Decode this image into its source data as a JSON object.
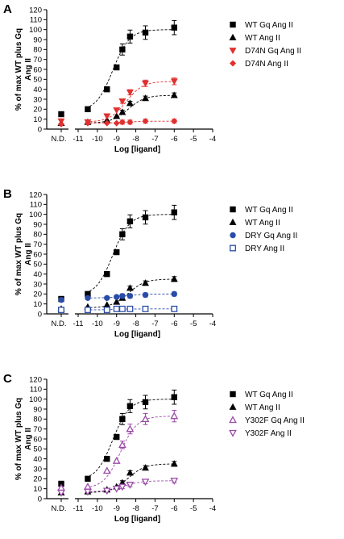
{
  "chart_data": [
    {
      "type": "scatter",
      "panel": "A",
      "xlabel": "Log [ligand]",
      "ylabel": "% of max WT plus Gq Ang II",
      "xlim": [
        -11,
        -4
      ],
      "ylim": [
        0,
        120
      ],
      "x_ticks": [
        "-11",
        "-10",
        "-9",
        "-8",
        "-7",
        "-6",
        "-5",
        "-4"
      ],
      "x_extra_tick": "N.D.",
      "y_ticks": [
        0,
        10,
        20,
        30,
        40,
        50,
        60,
        70,
        80,
        90,
        100,
        110,
        120
      ],
      "legend_position": "right",
      "series": [
        {
          "name": "WT Gq Ang II",
          "marker": "square",
          "color": "#000000",
          "nd": 15,
          "x": [
            -10.5,
            -9.5,
            -9,
            -8.7,
            -8.3,
            -7.5,
            -6
          ],
          "y": [
            20,
            40,
            62,
            80,
            93,
            97,
            102
          ],
          "fit": {
            "bottom": 18,
            "top": 100,
            "logec50": -9.2,
            "hill": 1
          }
        },
        {
          "name": "WT Ang II",
          "marker": "triangle-up",
          "color": "#000000",
          "nd": 6,
          "x": [
            -10.5,
            -9.5,
            -9,
            -8.7,
            -8.3,
            -7.5,
            -6
          ],
          "y": [
            7,
            9,
            13,
            17,
            26,
            31,
            34
          ],
          "fit": {
            "bottom": 6,
            "top": 34,
            "logec50": -8.4,
            "hill": 1
          }
        },
        {
          "name": "D74N Gq Ang II",
          "marker": "triangle-down",
          "color": "#e03030",
          "nd": 8,
          "x": [
            -10.5,
            -9.5,
            -9,
            -8.7,
            -8.3,
            -7.5,
            -6
          ],
          "y": [
            7,
            13,
            19,
            28,
            37,
            46,
            48
          ],
          "fit": {
            "bottom": 7,
            "top": 48,
            "logec50": -8.5,
            "hill": 1
          }
        },
        {
          "name": "D74N Ang II",
          "marker": "diamond",
          "color": "#e03030",
          "nd": 5,
          "x": [
            -10.5,
            -9.5,
            -9,
            -8.7,
            -8.3,
            -7.5,
            -6
          ],
          "y": [
            6,
            6,
            6,
            7,
            7,
            8,
            8
          ],
          "fit": {
            "bottom": 6,
            "top": 8,
            "logec50": -8.5,
            "hill": 1
          }
        }
      ]
    },
    {
      "type": "scatter",
      "panel": "B",
      "xlabel": "Log [ligand]",
      "ylabel": "% of max WT plus Gq Ang II",
      "xlim": [
        -11,
        -4
      ],
      "ylim": [
        0,
        120
      ],
      "x_ticks": [
        "-11",
        "-10",
        "-9",
        "-8",
        "-7",
        "-6",
        "-5",
        "-4"
      ],
      "x_extra_tick": "N.D.",
      "y_ticks": [
        0,
        10,
        20,
        30,
        40,
        50,
        60,
        70,
        80,
        90,
        100,
        110,
        120
      ],
      "legend_position": "right",
      "series": [
        {
          "name": "WT Gq Ang II",
          "marker": "square",
          "color": "#000000",
          "nd": 15,
          "x": [
            -10.5,
            -9.5,
            -9,
            -8.7,
            -8.3,
            -7.5,
            -6
          ],
          "y": [
            20,
            40,
            62,
            80,
            93,
            97,
            102
          ],
          "fit": {
            "bottom": 18,
            "top": 100,
            "logec50": -9.2,
            "hill": 1
          }
        },
        {
          "name": "WT Ang II",
          "marker": "triangle-up",
          "color": "#000000",
          "nd": 5,
          "x": [
            -10.5,
            -9.5,
            -9,
            -8.7,
            -8.3,
            -7.5,
            -6
          ],
          "y": [
            7,
            9,
            12,
            16,
            26,
            31,
            35
          ],
          "fit": {
            "bottom": 6,
            "top": 35,
            "logec50": -8.4,
            "hill": 1
          }
        },
        {
          "name": "DRY Gq Ang II",
          "marker": "circle",
          "color": "#2a4ca8",
          "nd": 14,
          "x": [
            -10.5,
            -9.5,
            -9,
            -8.7,
            -8.3,
            -7.5,
            -6
          ],
          "y": [
            16,
            16,
            17,
            18,
            18,
            19,
            20
          ],
          "fit": {
            "bottom": 16,
            "top": 20,
            "logec50": -8.5,
            "hill": 1
          }
        },
        {
          "name": "DRY Ang II",
          "marker": "open-square",
          "color": "#2a4ca8",
          "nd": 4,
          "x": [
            -10.5,
            -9.5,
            -9,
            -8.7,
            -8.3,
            -7.5,
            -6
          ],
          "y": [
            4,
            4,
            5,
            5,
            5,
            5,
            5
          ],
          "fit": {
            "bottom": 4,
            "top": 5,
            "logec50": -9,
            "hill": 1
          }
        }
      ]
    },
    {
      "type": "scatter",
      "panel": "C",
      "xlabel": "Log [ligand]",
      "ylabel": "% of max WT plus Gq Ang II",
      "xlim": [
        -11,
        -4
      ],
      "ylim": [
        0,
        120
      ],
      "x_ticks": [
        "-11",
        "-10",
        "-9",
        "-8",
        "-7",
        "-6",
        "-5",
        "-4"
      ],
      "x_extra_tick": "N.D.",
      "y_ticks": [
        0,
        10,
        20,
        30,
        40,
        50,
        60,
        70,
        80,
        90,
        100,
        110,
        120
      ],
      "legend_position": "right",
      "series": [
        {
          "name": "WT Gq Ang II",
          "marker": "square",
          "color": "#000000",
          "nd": 15,
          "x": [
            -10.5,
            -9.5,
            -9,
            -8.7,
            -8.3,
            -7.5,
            -6
          ],
          "y": [
            20,
            40,
            62,
            80,
            93,
            97,
            102
          ],
          "fit": {
            "bottom": 18,
            "top": 100,
            "logec50": -9.2,
            "hill": 1
          }
        },
        {
          "name": "WT Ang II",
          "marker": "triangle-up",
          "color": "#000000",
          "nd": 6,
          "x": [
            -10.5,
            -9.5,
            -9,
            -8.7,
            -8.3,
            -7.5,
            -6
          ],
          "y": [
            7,
            9,
            12,
            16,
            26,
            31,
            35
          ],
          "fit": {
            "bottom": 6,
            "top": 35,
            "logec50": -8.4,
            "hill": 1
          }
        },
        {
          "name": "Y302F Gq Ang II",
          "marker": "open-triangle-up",
          "color": "#9b4aa8",
          "nd": 11,
          "x": [
            -10.5,
            -9.5,
            -9,
            -8.7,
            -8.3,
            -7.5,
            -6
          ],
          "y": [
            12,
            28,
            38,
            54,
            70,
            80,
            83
          ],
          "fit": {
            "bottom": 10,
            "top": 83,
            "logec50": -8.8,
            "hill": 1
          }
        },
        {
          "name": "Y302F Ang II",
          "marker": "open-triangle-down",
          "color": "#9b4aa8",
          "nd": 6,
          "x": [
            -10.5,
            -9.5,
            -9,
            -8.7,
            -8.3,
            -7.5,
            -6
          ],
          "y": [
            7,
            8,
            10,
            12,
            14,
            17,
            18
          ],
          "fit": {
            "bottom": 7,
            "top": 18,
            "logec50": -8.6,
            "hill": 1
          }
        }
      ]
    }
  ]
}
